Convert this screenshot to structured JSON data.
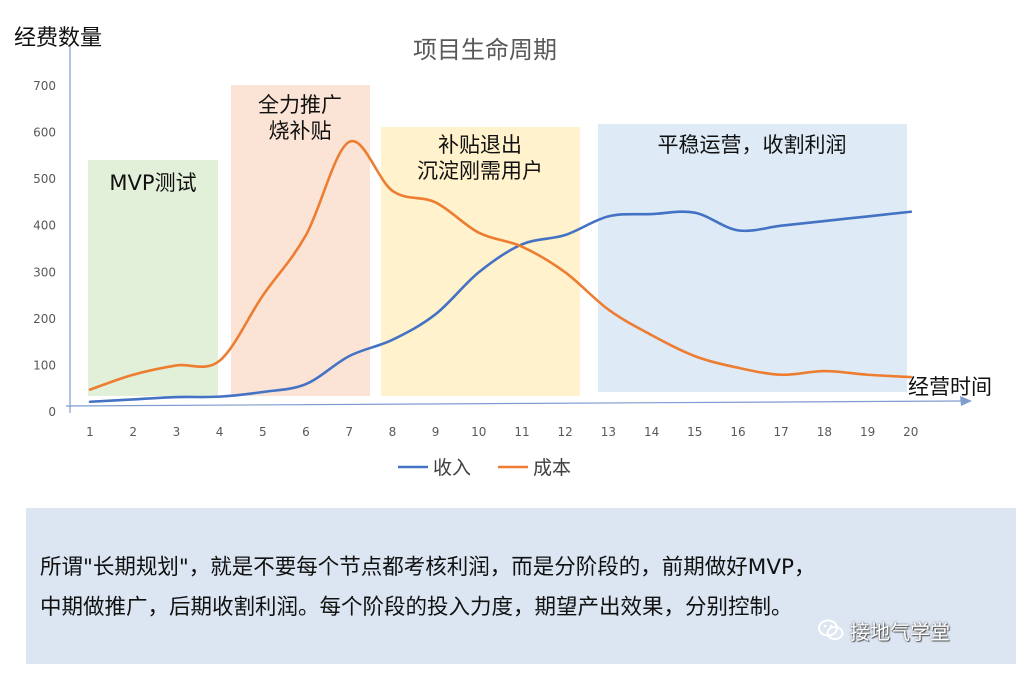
{
  "chart_data": {
    "type": "line",
    "title": "项目生命周期",
    "ylabel": "经费数量",
    "xlabel": "经营时间",
    "x": [
      1,
      2,
      3,
      4,
      5,
      6,
      7,
      8,
      9,
      10,
      11,
      12,
      13,
      14,
      15,
      16,
      17,
      18,
      19,
      20
    ],
    "ylim": [
      0,
      700
    ],
    "yticks": [
      0,
      100,
      200,
      300,
      400,
      500,
      600,
      700
    ],
    "series": [
      {
        "name": "收入",
        "color": "#4472c4",
        "values": [
          22,
          27,
          32,
          33,
          43,
          60,
          120,
          155,
          210,
          300,
          360,
          380,
          420,
          425,
          428,
          390,
          400,
          410,
          420,
          430
        ]
      },
      {
        "name": "成本",
        "color": "#ed7d31",
        "values": [
          48,
          80,
          100,
          110,
          250,
          380,
          580,
          475,
          450,
          385,
          355,
          300,
          220,
          165,
          120,
          95,
          80,
          88,
          80,
          75
        ]
      }
    ],
    "phases": [
      {
        "label": [
          "MVP测试"
        ],
        "color": "#e2efd9"
      },
      {
        "label": [
          "全力推广",
          "烧补贴"
        ],
        "color": "#fbe4d5"
      },
      {
        "label": [
          "补贴退出",
          "沉淀刚需用户"
        ],
        "color": "#fff2cc"
      },
      {
        "label": [
          "平稳运营，收割利润"
        ],
        "color": "#deebf7"
      }
    ],
    "legend_position": "bottom"
  },
  "caption": {
    "line1": "所谓\"长期规划\"，就是不要每个节点都考核利润，而是分阶段的，前期做好MVP，",
    "line2": "中期做推广，后期收割利润。每个阶段的投入力度，期望产出效果，分别控制。"
  },
  "watermark": {
    "text": "接地气学堂",
    "icon": "wechat-icon"
  }
}
